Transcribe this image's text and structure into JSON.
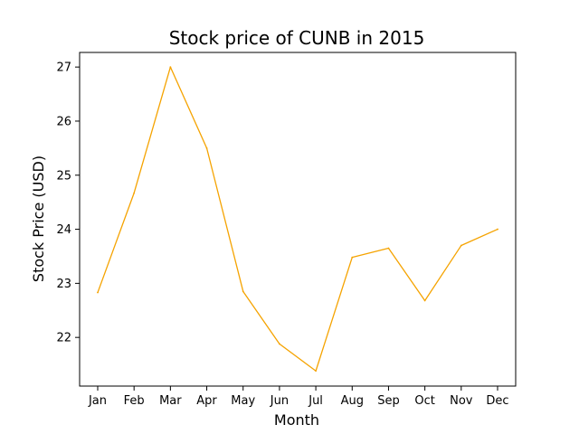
{
  "chart_data": {
    "type": "line",
    "title": "Stock price of CUNB in 2015",
    "xlabel": "Month",
    "ylabel": "Stock Price (USD)",
    "categories": [
      "Jan",
      "Feb",
      "Mar",
      "Apr",
      "May",
      "Jun",
      "Jul",
      "Aug",
      "Sep",
      "Oct",
      "Nov",
      "Dec"
    ],
    "series": [
      {
        "values": [
          22.83,
          24.67,
          27.0,
          25.5,
          22.85,
          21.88,
          21.38,
          23.48,
          23.65,
          22.68,
          23.7,
          24.0
        ],
        "color": "#f5a300"
      }
    ],
    "yticks": [
      22,
      23,
      24,
      25,
      26,
      27
    ],
    "ylim": [
      21.1,
      27.27
    ],
    "grid": false,
    "legend": "none"
  }
}
